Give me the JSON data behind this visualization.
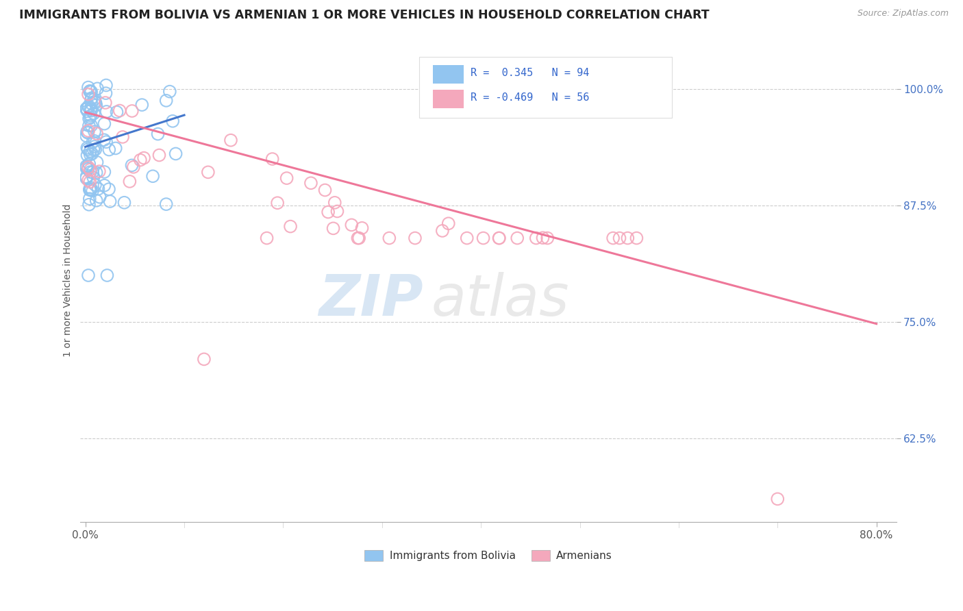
{
  "title": "IMMIGRANTS FROM BOLIVIA VS ARMENIAN 1 OR MORE VEHICLES IN HOUSEHOLD CORRELATION CHART",
  "source_text": "Source: ZipAtlas.com",
  "ylabel": "1 or more Vehicles in Household",
  "y_ticks": [
    0.625,
    0.75,
    0.875,
    1.0
  ],
  "y_tick_labels": [
    "62.5%",
    "75.0%",
    "87.5%",
    "100.0%"
  ],
  "xlim": [
    -0.005,
    0.82
  ],
  "ylim": [
    0.535,
    1.055
  ],
  "blue_R": 0.345,
  "blue_N": 94,
  "pink_R": -0.469,
  "pink_N": 56,
  "blue_color": "#92C5F0",
  "pink_color": "#F4A8BC",
  "blue_line_color": "#4477CC",
  "pink_line_color": "#EE7799",
  "legend_label_blue": "Immigrants from Bolivia",
  "legend_label_pink": "Armenians",
  "blue_trend_x": [
    0.0,
    0.1
  ],
  "blue_trend_y": [
    0.938,
    0.972
  ],
  "pink_trend_x": [
    0.0,
    0.8
  ],
  "pink_trend_y": [
    0.975,
    0.748
  ],
  "watermark_zip_color": "#C8DCF0",
  "watermark_atlas_color": "#E0E0E0",
  "grid_color": "#CCCCCC",
  "tick_color_y": "#4472C4",
  "tick_color_x": "#555555",
  "title_color": "#222222",
  "source_color": "#999999",
  "ylabel_color": "#555555"
}
